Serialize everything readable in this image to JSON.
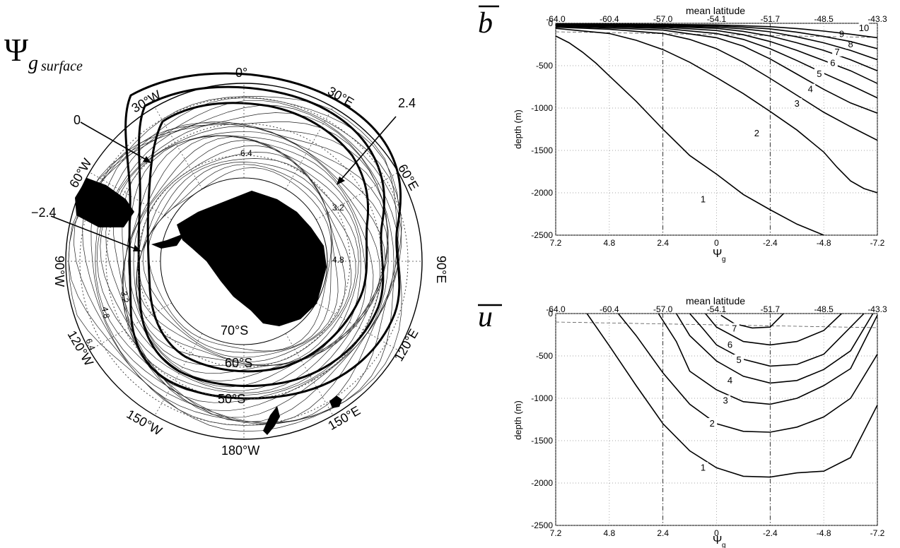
{
  "map": {
    "title_symbol": "Ψ",
    "title_subscript": "g",
    "title_subscript_italic": "surface",
    "lon_labels": [
      "0°",
      "30°E",
      "60°E",
      "90°E",
      "120°E",
      "150°E",
      "180°W",
      "150°W",
      "120°W",
      "90°W",
      "60°W",
      "30°W"
    ],
    "lat_labels": [
      "70°S",
      "60°S",
      "50°S"
    ],
    "contour_labels": [
      "6.4",
      "3.2",
      "4.8",
      "3.2",
      "4.8",
      "6.4"
    ],
    "callouts": [
      "0",
      "2.4",
      "−2.4"
    ],
    "colors": {
      "land": "#000000",
      "contour": "#111111",
      "grid": "#444444"
    }
  },
  "chart_data": [
    {
      "type": "line",
      "panel_symbol": "b",
      "title": "mean latitude",
      "xlabel_symbol": "Ψ",
      "xlabel_sub": "g",
      "ylabel": "depth (m)",
      "x_ticks": [
        "7.2",
        "4.8",
        "2.4",
        "0",
        "-2.4",
        "-4.8",
        "-7.2"
      ],
      "x_tick_values": [
        7.2,
        4.8,
        2.4,
        0,
        -2.4,
        -4.8,
        -7.2
      ],
      "top_ticks": [
        "-64.0",
        "-60.4",
        "-57.0",
        "-54.1",
        "-51.7",
        "-48.5",
        "-43.3"
      ],
      "y_ticks": [
        "0",
        "-500",
        "-1000",
        "-1500",
        "-2000",
        "-2500"
      ],
      "y_tick_values": [
        0,
        -500,
        -1000,
        -1500,
        -2000,
        -2500
      ],
      "xlim": [
        7.2,
        -7.2
      ],
      "ylim": [
        -2500,
        0
      ],
      "grid": true,
      "dashed_vlines": [
        2.4,
        -2.4
      ],
      "mixed_layer_depth": -100,
      "series": [
        {
          "label": "1",
          "x": [
            7.2,
            6.6,
            6.0,
            5.4,
            4.8,
            3.6,
            2.4,
            1.2,
            0,
            -1.2,
            -2.4,
            -3.6,
            -4.8,
            -6.0
          ],
          "y": [
            -150,
            -230,
            -340,
            -470,
            -620,
            -920,
            -1250,
            -1560,
            -1780,
            -2020,
            -2200,
            -2370,
            -2500,
            -2650
          ],
          "label_at": [
            0.6,
            -2080
          ]
        },
        {
          "label": "2",
          "x": [
            7.2,
            6.0,
            4.8,
            3.6,
            2.4,
            1.2,
            0,
            -1.2,
            -2.4,
            -3.6,
            -4.8,
            -5.4,
            -6.0,
            -6.6,
            -7.2
          ],
          "y": [
            -60,
            -90,
            -120,
            -200,
            -310,
            -460,
            -640,
            -830,
            -1040,
            -1260,
            -1520,
            -1700,
            -1860,
            -1950,
            -2000
          ],
          "label_at": [
            -1.8,
            -1300
          ]
        },
        {
          "label": "3",
          "x": [
            7.2,
            4.8,
            2.4,
            1.2,
            0,
            -1.2,
            -2.4,
            -3.6,
            -4.8,
            -6.0,
            -7.2
          ],
          "y": [
            -45,
            -70,
            -120,
            -190,
            -300,
            -460,
            -650,
            -850,
            -1050,
            -1220,
            -1380
          ],
          "label_at": [
            -3.6,
            -950
          ]
        },
        {
          "label": "4",
          "x": [
            7.2,
            4.8,
            2.4,
            0,
            -1.2,
            -2.4,
            -3.6,
            -4.8,
            -6.0,
            -7.2
          ],
          "y": [
            -35,
            -55,
            -80,
            -170,
            -270,
            -420,
            -600,
            -780,
            -940,
            -1060
          ],
          "label_at": [
            -4.2,
            -780
          ]
        },
        {
          "label": "5",
          "x": [
            7.2,
            4.8,
            2.4,
            0,
            -1.2,
            -2.4,
            -3.6,
            -4.8,
            -6.0,
            -7.2
          ],
          "y": [
            -28,
            -42,
            -60,
            -120,
            -190,
            -300,
            -440,
            -590,
            -730,
            -880
          ],
          "label_at": [
            -4.6,
            -600
          ]
        },
        {
          "label": "6",
          "x": [
            7.2,
            4.8,
            2.4,
            0,
            -1.2,
            -2.4,
            -3.6,
            -4.8,
            -6.0,
            -7.2
          ],
          "y": [
            -22,
            -33,
            -46,
            -85,
            -135,
            -215,
            -320,
            -440,
            -560,
            -710
          ],
          "label_at": [
            -5.2,
            -470
          ]
        },
        {
          "label": "7",
          "x": [
            7.2,
            4.8,
            2.4,
            0,
            -1.2,
            -2.4,
            -3.6,
            -4.8,
            -6.0,
            -7.2
          ],
          "y": [
            -17,
            -26,
            -36,
            -60,
            -95,
            -150,
            -230,
            -320,
            -430,
            -560
          ],
          "label_at": [
            -5.4,
            -340
          ]
        },
        {
          "label": "8",
          "x": [
            7.2,
            4.8,
            2.4,
            0,
            -1.2,
            -2.4,
            -3.6,
            -4.8,
            -6.0,
            -7.2
          ],
          "y": [
            -12,
            -20,
            -28,
            -44,
            -66,
            -100,
            -160,
            -230,
            -320,
            -430
          ],
          "label_at": [
            -6.0,
            -250
          ]
        },
        {
          "label": "9",
          "x": [
            7.2,
            4.8,
            2.4,
            0,
            -1.2,
            -2.4,
            -3.6,
            -4.8,
            -6.0,
            -7.2
          ],
          "y": [
            -8,
            -14,
            -20,
            -30,
            -45,
            -66,
            -105,
            -155,
            -215,
            -300
          ],
          "label_at": [
            -5.6,
            -130
          ]
        },
        {
          "label": "10",
          "x": [
            7.2,
            4.8,
            2.4,
            0,
            -1.2,
            -2.4,
            -3.6,
            -4.8,
            -6.0,
            -7.2
          ],
          "y": [
            -5,
            -9,
            -13,
            -19,
            -28,
            -40,
            -62,
            -92,
            -128,
            -170
          ],
          "label_at": [
            -6.6,
            -60
          ]
        }
      ]
    },
    {
      "type": "line",
      "panel_symbol": "u",
      "title": "mean latitude",
      "xlabel_symbol": "Ψ",
      "xlabel_sub": "g",
      "ylabel": "depth (m)",
      "x_ticks": [
        "7.2",
        "4.8",
        "2.4",
        "0",
        "-2.4",
        "-4.8",
        "-7.2"
      ],
      "x_tick_values": [
        7.2,
        4.8,
        2.4,
        0,
        -2.4,
        -4.8,
        -7.2
      ],
      "top_ticks": [
        "-64.0",
        "-60.4",
        "-57.0",
        "-54.1",
        "-51.7",
        "-48.5",
        "-43.3"
      ],
      "y_ticks": [
        "0",
        "-500",
        "-1000",
        "-1500",
        "-2000",
        "-2500"
      ],
      "y_tick_values": [
        0,
        -500,
        -1000,
        -1500,
        -2000,
        -2500
      ],
      "xlim": [
        7.2,
        -7.2
      ],
      "ylim": [
        -2500,
        0
      ],
      "grid": true,
      "dashed_vlines": [
        2.4,
        -2.4
      ],
      "mixed_layer_depth": -100,
      "series": [
        {
          "label": "1",
          "x": [
            5.8,
            4.8,
            3.6,
            2.4,
            1.2,
            0,
            -1.2,
            -2.4,
            -3.6,
            -4.8,
            -6.0,
            -7.2
          ],
          "y": [
            0,
            -380,
            -850,
            -1300,
            -1620,
            -1820,
            -1920,
            -1930,
            -1880,
            -1860,
            -1700,
            -1080
          ],
          "label_at": [
            0.6,
            -1820
          ]
        },
        {
          "label": "2",
          "x": [
            4.4,
            3.6,
            2.4,
            1.2,
            0,
            -1.2,
            -2.4,
            -3.6,
            -4.8,
            -6.0,
            -7.2
          ],
          "y": [
            0,
            -260,
            -700,
            -1070,
            -1300,
            -1390,
            -1400,
            -1340,
            -1220,
            -1000,
            -480
          ],
          "label_at": [
            0.2,
            -1300
          ]
        },
        {
          "label": "3",
          "x": [
            2.6,
            1.8,
            1.2,
            0,
            -1.2,
            -2.4,
            -3.6,
            -4.8,
            -6.0,
            -7.2
          ],
          "y": [
            0,
            -330,
            -680,
            -900,
            -1040,
            -1070,
            -1000,
            -850,
            -650,
            -20
          ],
          "label_at": [
            -0.4,
            -1030
          ]
        },
        {
          "label": "4",
          "x": [
            1.8,
            1.2,
            0,
            -1.2,
            -2.4,
            -3.6,
            -4.8,
            -6.0,
            -7.0
          ],
          "y": [
            0,
            -260,
            -560,
            -740,
            -820,
            -790,
            -660,
            -440,
            0
          ],
          "label_at": [
            -0.6,
            -790
          ]
        },
        {
          "label": "5",
          "x": [
            1.2,
            0.6,
            0,
            -1.2,
            -2.4,
            -3.6,
            -4.8,
            -6.6
          ],
          "y": [
            0,
            -180,
            -370,
            -540,
            -620,
            -600,
            -480,
            0
          ],
          "label_at": [
            -1.0,
            -550
          ]
        },
        {
          "label": "6",
          "x": [
            0.5,
            0,
            -1.2,
            -2.4,
            -3.6,
            -4.8,
            -5.6
          ],
          "y": [
            0,
            -160,
            -330,
            -370,
            -330,
            -200,
            0
          ],
          "label_at": [
            -0.6,
            -370
          ]
        },
        {
          "label": "7",
          "x": [
            -0.2,
            -0.8,
            -1.6,
            -2.4,
            -3.0
          ],
          "y": [
            -20,
            -120,
            -170,
            -160,
            0
          ],
          "label_at": [
            -0.8,
            -180
          ]
        }
      ]
    }
  ]
}
